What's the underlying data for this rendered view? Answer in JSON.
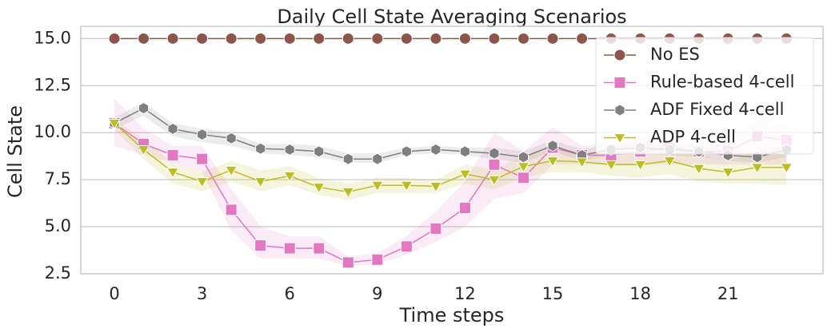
{
  "chart_data": {
    "type": "line",
    "title": "Daily Cell State Averaging Scenarios",
    "x_label": "Time steps",
    "y_label": "Cell State",
    "x": [
      0,
      1,
      2,
      3,
      4,
      5,
      6,
      7,
      8,
      9,
      10,
      11,
      12,
      13,
      14,
      15,
      16,
      17,
      18,
      19,
      20,
      21,
      22,
      23
    ],
    "series": [
      {
        "name": "No ES",
        "color": "#8c564b",
        "marker": "circle",
        "values": [
          15,
          15,
          15,
          15,
          15,
          15,
          15,
          15,
          15,
          15,
          15,
          15,
          15,
          15,
          15,
          15,
          15,
          15,
          15,
          15,
          15,
          15,
          15,
          15
        ]
      },
      {
        "name": "Rule-based 4-cell",
        "color": "#e377c2",
        "marker": "square",
        "values": [
          10.5,
          9.4,
          8.8,
          8.6,
          5.9,
          4.0,
          3.85,
          3.85,
          3.1,
          3.25,
          3.95,
          4.9,
          6.0,
          8.3,
          7.6,
          9.2,
          8.8,
          8.8,
          9.0,
          9.2,
          9.0,
          9.0,
          9.8,
          9.6
        ],
        "lower": [
          9.3,
          8.8,
          8.4,
          7.9,
          4.8,
          3.3,
          3.3,
          3.3,
          2.9,
          3.0,
          3.5,
          4.2,
          5.0,
          6.5,
          6.8,
          8.3,
          8.3,
          8.3,
          8.3,
          8.3,
          8.3,
          8.3,
          8.3,
          8.3
        ],
        "upper": [
          11.8,
          10.2,
          9.3,
          9.3,
          7.0,
          5.0,
          4.5,
          4.5,
          3.4,
          3.6,
          4.5,
          5.8,
          7.4,
          10.0,
          9.0,
          10.3,
          9.3,
          9.5,
          9.8,
          10.0,
          9.8,
          9.8,
          10.6,
          10.5
        ]
      },
      {
        "name": "ADF Fixed 4-cell",
        "color": "#7f7f7f",
        "marker": "hexagon",
        "values": [
          10.5,
          11.3,
          10.2,
          9.9,
          9.7,
          9.15,
          9.1,
          9.0,
          8.6,
          8.6,
          9.0,
          9.1,
          9.0,
          8.9,
          8.7,
          9.3,
          8.8,
          9.1,
          9.2,
          9.1,
          9.0,
          8.8,
          8.7,
          9.1
        ],
        "lower": [
          10.2,
          10.9,
          9.8,
          9.5,
          9.3,
          8.9,
          8.8,
          8.7,
          8.4,
          8.4,
          8.8,
          8.9,
          8.8,
          8.6,
          8.4,
          9.0,
          8.5,
          8.8,
          8.9,
          8.8,
          8.7,
          8.5,
          8.4,
          8.7
        ],
        "upper": [
          10.8,
          11.6,
          10.5,
          10.2,
          10.0,
          9.4,
          9.4,
          9.3,
          8.9,
          8.9,
          9.2,
          9.3,
          9.2,
          9.2,
          9.0,
          9.6,
          9.1,
          9.4,
          9.5,
          9.4,
          9.3,
          9.1,
          9.0,
          9.4
        ]
      },
      {
        "name": "ADP 4-cell",
        "color": "#bcbd22",
        "marker": "triangle-down",
        "values": [
          10.5,
          9.1,
          7.9,
          7.4,
          8.0,
          7.4,
          7.7,
          7.1,
          6.85,
          7.2,
          7.2,
          7.15,
          7.8,
          7.5,
          8.2,
          8.5,
          8.45,
          8.3,
          8.3,
          8.5,
          8.1,
          7.9,
          8.15,
          8.15
        ],
        "lower": [
          10.2,
          8.6,
          7.3,
          6.9,
          7.4,
          6.9,
          7.2,
          6.7,
          6.4,
          6.8,
          6.8,
          6.8,
          7.3,
          7.0,
          7.6,
          7.9,
          7.9,
          7.7,
          7.6,
          7.8,
          7.4,
          7.3,
          7.3,
          7.2
        ],
        "upper": [
          10.8,
          9.6,
          8.4,
          7.9,
          8.5,
          8.0,
          8.2,
          7.6,
          7.3,
          7.6,
          7.6,
          7.5,
          8.3,
          8.0,
          8.8,
          9.1,
          9.0,
          8.9,
          9.0,
          9.2,
          8.8,
          8.5,
          9.0,
          9.1
        ]
      }
    ],
    "xlim": [
      -1.15,
      24.25
    ],
    "xticks": [
      0,
      3,
      6,
      9,
      12,
      15,
      18,
      21
    ],
    "ylim": [
      2.5,
      15.65
    ],
    "yticks": [
      2.5,
      {
        "value": 5,
        "label": "5.0"
      },
      7.5,
      {
        "value": 10,
        "label": "10.0"
      },
      12.5,
      {
        "value": 15,
        "label": "15.0"
      }
    ],
    "grid": true,
    "legend": "upper right"
  }
}
